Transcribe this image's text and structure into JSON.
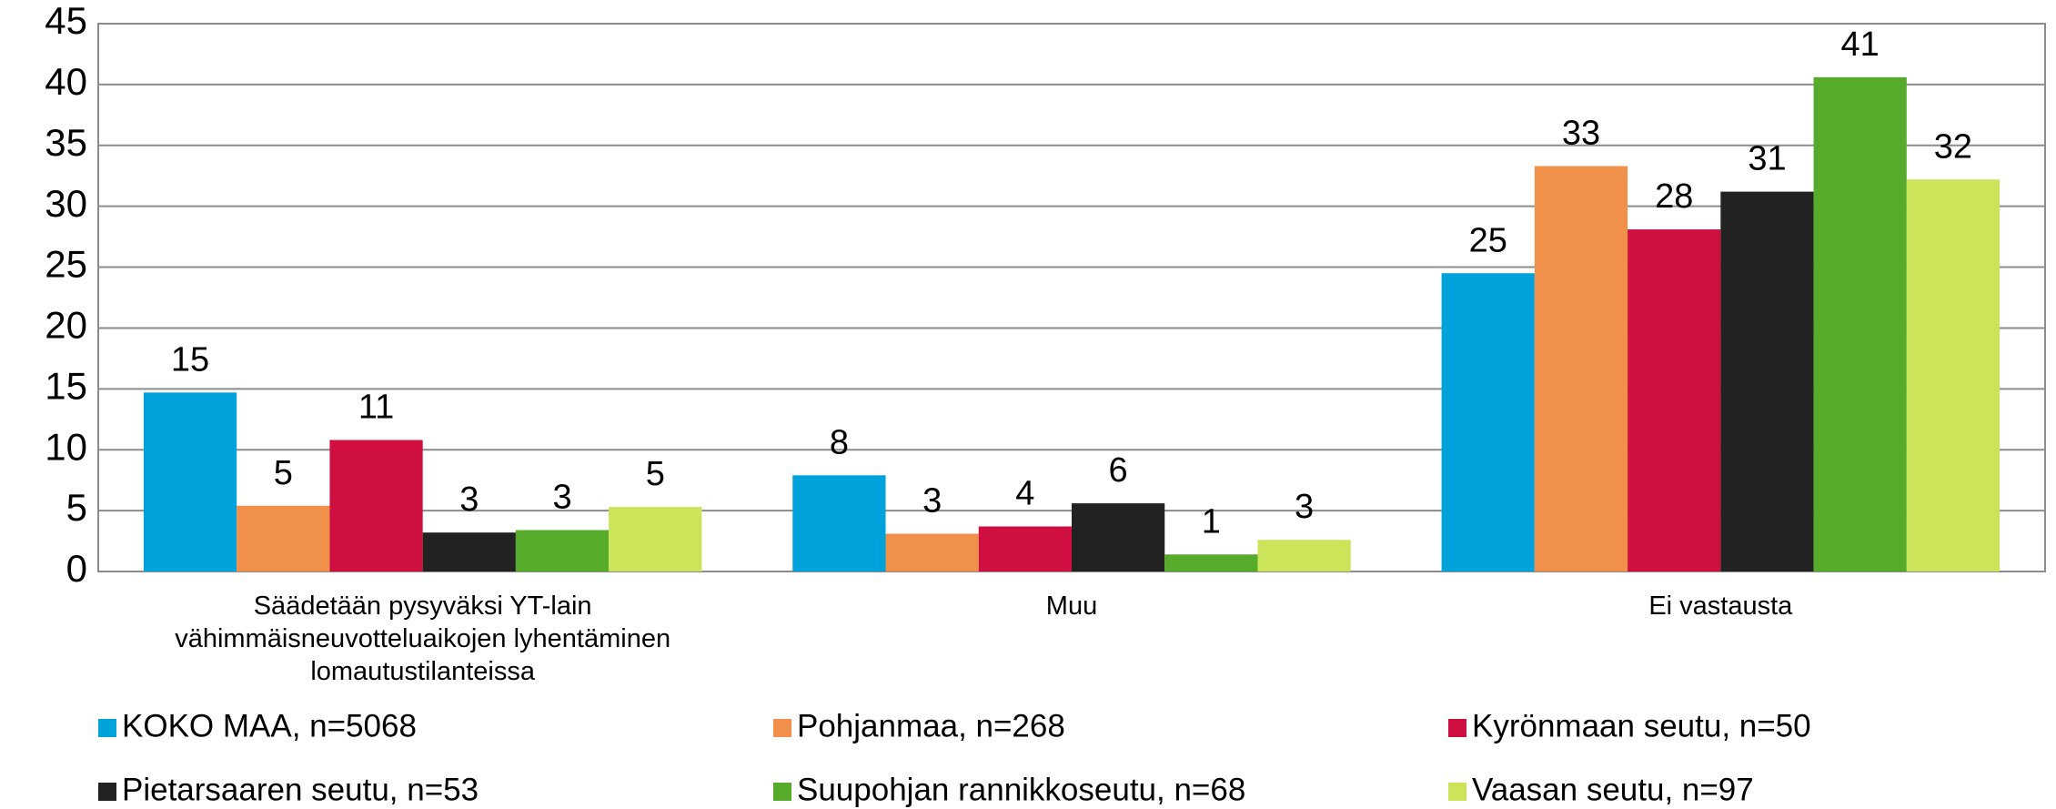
{
  "chart_data": {
    "type": "bar",
    "categories": [
      "Säädetään pysyväksi YT-lain vähimmäisneuvotteluaikojen lyhentäminen lomautustilanteissa",
      "Muu",
      "Ei vastausta"
    ],
    "series": [
      {
        "name": "KOKO MAA, n=5068",
        "color": "#00a2db",
        "values": [
          14.7,
          7.9,
          24.5
        ],
        "value_labels": [
          "15",
          "8",
          "25"
        ]
      },
      {
        "name": "Pohjanmaa, n=268",
        "color": "#f0904a",
        "values": [
          5.4,
          3.1,
          33.3
        ],
        "value_labels": [
          "5",
          "3",
          "33"
        ]
      },
      {
        "name": "Kyrönmaan seutu, n=50",
        "color": "#cf0f3f",
        "values": [
          10.8,
          3.7,
          28.1
        ],
        "value_labels": [
          "11",
          "4",
          "28"
        ]
      },
      {
        "name": "Pietarsaaren seutu, n=53",
        "color": "#222222",
        "values": [
          3.2,
          5.6,
          31.2
        ],
        "value_labels": [
          "3",
          "6",
          "31"
        ]
      },
      {
        "name": "Suupohjan rannikkoseutu, n=68",
        "color": "#57ab2a",
        "values": [
          3.4,
          1.4,
          40.6
        ],
        "value_labels": [
          "3",
          "1",
          "41"
        ]
      },
      {
        "name": "Vaasan seutu, n=97",
        "color": "#cce45a",
        "values": [
          5.3,
          2.6,
          32.2
        ],
        "value_labels": [
          "5",
          "3",
          "32"
        ]
      }
    ],
    "ylim": [
      0,
      45
    ],
    "yticks": [
      0,
      5,
      10,
      15,
      20,
      25,
      30,
      35,
      40,
      45
    ],
    "grid": true,
    "legend": "bottom"
  }
}
